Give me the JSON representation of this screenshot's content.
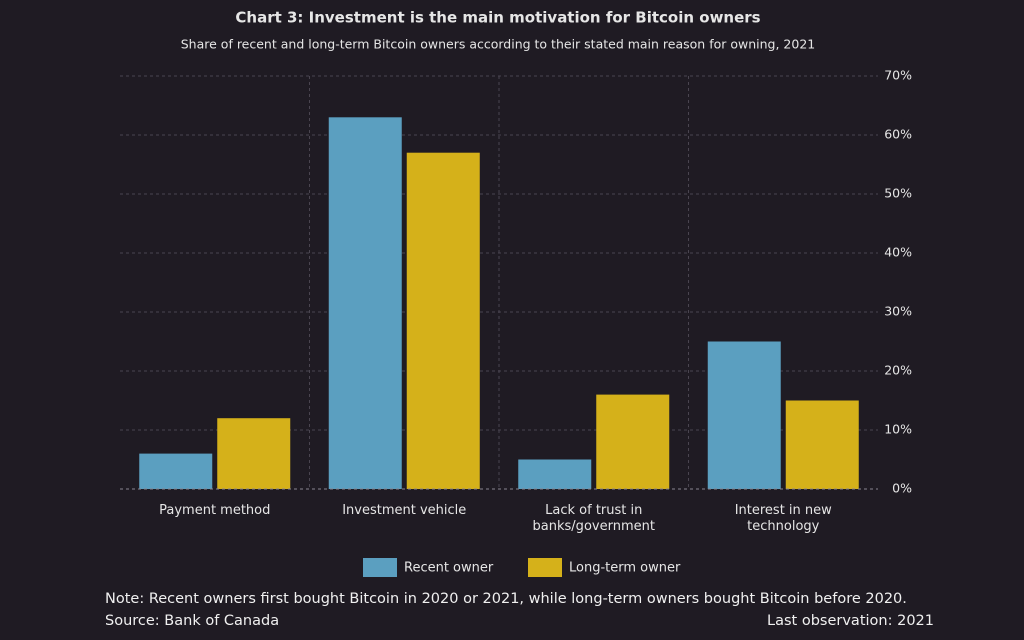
{
  "chart_data": {
    "type": "bar",
    "title": "Chart 3: Investment is the main motivation for Bitcoin owners",
    "subtitle": "Share of recent and long-term Bitcoin owners according to their stated main reason for owning, 2021",
    "categories": [
      "Payment method",
      "Investment vehicle",
      "Lack of trust in banks/government",
      "Interest in new technology"
    ],
    "series": [
      {
        "name": "Recent owner",
        "color": "#5b9fc0",
        "values": [
          6,
          63,
          5,
          25
        ]
      },
      {
        "name": "Long-term owner",
        "color": "#d5b11a",
        "values": [
          12,
          57,
          16,
          15
        ]
      }
    ],
    "ylim": [
      0,
      70
    ],
    "yticks": [
      {
        "value": 0,
        "label": "0%"
      },
      {
        "value": 10,
        "label": "10%"
      },
      {
        "value": 20,
        "label": "20%"
      },
      {
        "value": 30,
        "label": "30%"
      },
      {
        "value": 40,
        "label": "40%"
      },
      {
        "value": 50,
        "label": "50%"
      },
      {
        "value": 60,
        "label": "60%"
      },
      {
        "value": 70,
        "label": "70%"
      }
    ],
    "grid": true,
    "legend": "bottom",
    "note": "Note: Recent owners first bought Bitcoin in 2020 or 2021, while long-term owners bought Bitcoin before 2020.",
    "source": "Source: Bank of Canada",
    "last_observation": "Last observation: 2021"
  }
}
